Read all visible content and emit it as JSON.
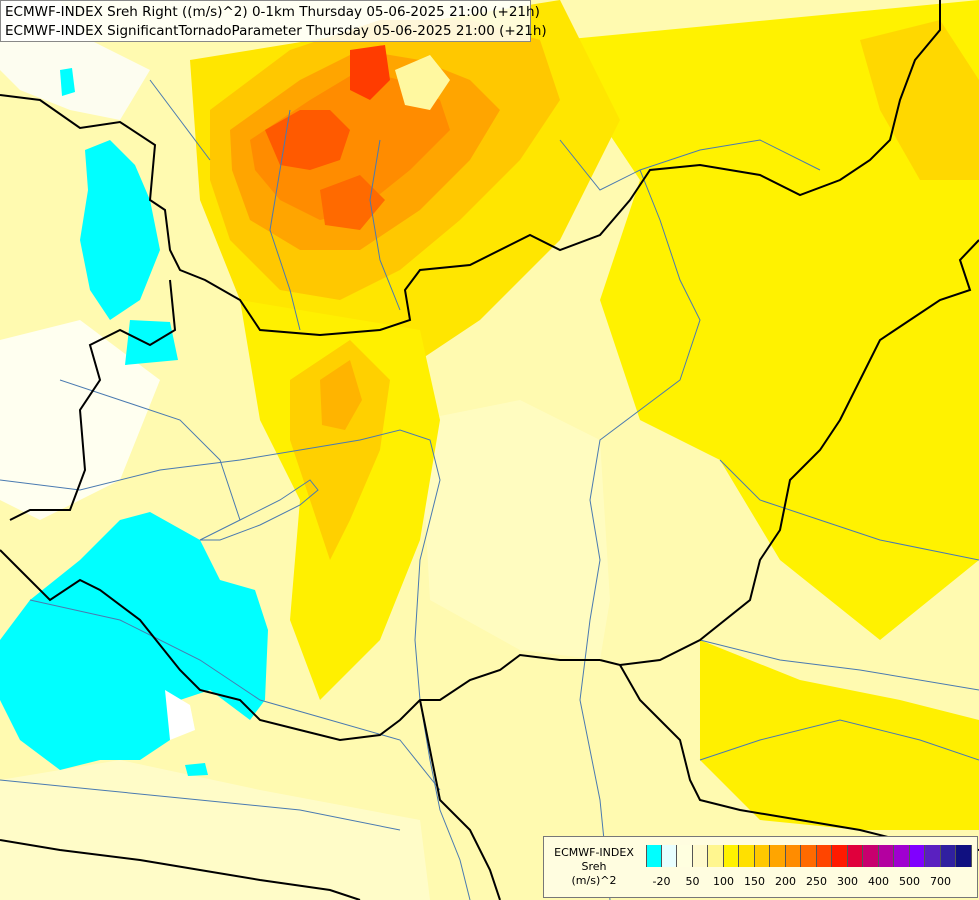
{
  "title": {
    "line1": "ECMWF-INDEX Sreh Right ((m/s)^2) 0-1km Thursday 05-06-2025 21:00 (+21h)",
    "line2": "ECMWF-INDEX SignificantTornadoParameter Thursday 05-06-2025 21:00 (+21h)"
  },
  "legend": {
    "model": "ECMWF-INDEX",
    "variable": "Sreh",
    "unit": "(m/s)^2",
    "colors": [
      "#00ffff",
      "#e8ffff",
      "#ffffe0",
      "#fffacd",
      "#fff68f",
      "#fff200",
      "#ffe000",
      "#ffc800",
      "#ffa500",
      "#ff8c00",
      "#ff6a00",
      "#ff4500",
      "#ff1a00",
      "#e0003c",
      "#c8006e",
      "#b400a0",
      "#a000d0",
      "#8000ff",
      "#5a20c0",
      "#3020a0",
      "#101080"
    ],
    "ticks": [
      "-20",
      "50",
      "100",
      "150",
      "200",
      "250",
      "300",
      "400",
      "500",
      "700"
    ]
  },
  "colors": {
    "background": "#fffab0",
    "low_negative": "#00ffff",
    "high_max": "#ff4000",
    "border": "#000000",
    "river": "#4a7ab0"
  }
}
